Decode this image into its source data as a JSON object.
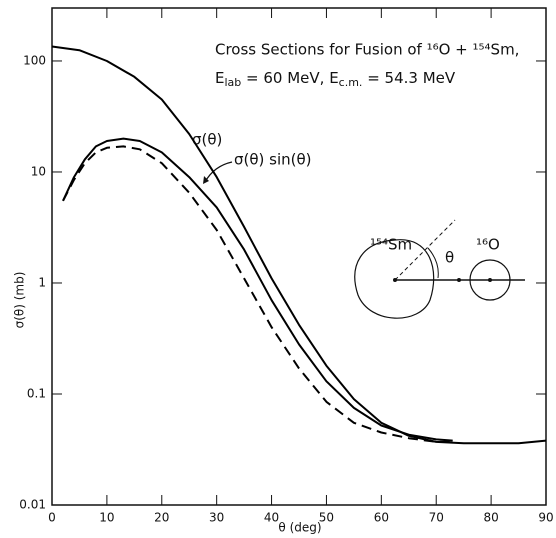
{
  "chart_data": {
    "type": "line",
    "title": "Cross Sections for Fusion of ¹⁶O + ¹⁵⁴Sm,",
    "subtitle": [
      "E",
      "lab",
      " = 60 MeV, E",
      "c.m.",
      " = 54.3 MeV"
    ],
    "x_label": "θ (deg)",
    "y_label": "σ(θ) (mb)",
    "annotations": [
      "σ(θ)",
      "σ(θ) sin(θ)",
      "¹⁵⁴Sm",
      "¹⁶O",
      "θ"
    ],
    "xlim": [
      0,
      90
    ],
    "xticks": [
      0,
      10,
      20,
      30,
      40,
      50,
      60,
      70,
      80,
      90
    ],
    "ylim": [
      0.01,
      300
    ],
    "yticks": [
      0.01,
      0.1,
      1,
      10,
      100
    ],
    "log_y": true,
    "series": [
      {
        "name": "σ(θ)",
        "color": "#000000",
        "dash": false,
        "x": [
          0,
          5,
          10,
          15,
          20,
          25,
          30,
          35,
          40,
          45,
          50,
          55,
          60,
          65,
          70,
          75,
          80,
          85,
          90
        ],
        "values": [
          135,
          125,
          100,
          72,
          45,
          22,
          9,
          3.2,
          1.1,
          0.42,
          0.18,
          0.09,
          0.055,
          0.042,
          0.037,
          0.036,
          0.036,
          0.036,
          0.038
        ]
      },
      {
        "name": "σ(θ) sin(θ)",
        "color": "#000000",
        "dash": false,
        "x": [
          2,
          4,
          6,
          8,
          10,
          13,
          16,
          20,
          25,
          30,
          35,
          40,
          45,
          50,
          55,
          60,
          65,
          70,
          73
        ],
        "values": [
          5.5,
          9,
          13,
          17,
          19,
          20,
          19,
          15,
          9,
          4.8,
          2,
          0.7,
          0.28,
          0.13,
          0.075,
          0.052,
          0.043,
          0.039,
          0.038
        ]
      },
      {
        "color": "#000000",
        "dash": true,
        "x": [
          2,
          4,
          6,
          8,
          10,
          13,
          16,
          20,
          25,
          30,
          35,
          40,
          45,
          50,
          55,
          60,
          65,
          70,
          73
        ],
        "values": [
          5.5,
          8.5,
          12,
          15,
          16.5,
          17,
          16,
          12,
          6.5,
          3,
          1.1,
          0.4,
          0.17,
          0.085,
          0.055,
          0.045,
          0.04,
          0.037,
          0.037
        ]
      }
    ]
  }
}
